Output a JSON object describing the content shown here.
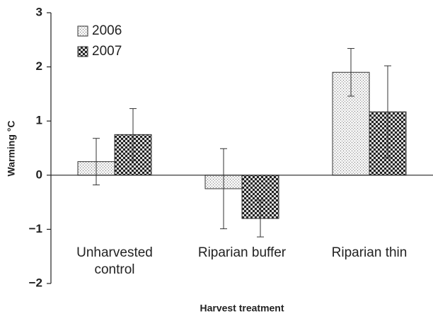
{
  "chart_data": {
    "type": "bar",
    "xlabel": "Harvest treatment",
    "ylabel": "Warming °C",
    "categories": [
      "Unharvested control",
      "Riparian buffer",
      "Riparian thin"
    ],
    "series": [
      {
        "name": "2006",
        "color": "#e8e8e8",
        "values": [
          0.25,
          -0.25,
          1.9
        ],
        "errors": [
          0.43,
          0.74,
          0.44
        ]
      },
      {
        "name": "2007",
        "color": "#333333",
        "values": [
          0.75,
          -0.8,
          1.17
        ],
        "errors": [
          0.48,
          0.34,
          0.85
        ]
      }
    ],
    "ylim": [
      -2,
      3
    ],
    "yticks": [
      {
        "value": -2,
        "label": "−2"
      },
      {
        "value": -1,
        "label": "−1"
      },
      0,
      1,
      2,
      3
    ],
    "legend": "top-left"
  }
}
